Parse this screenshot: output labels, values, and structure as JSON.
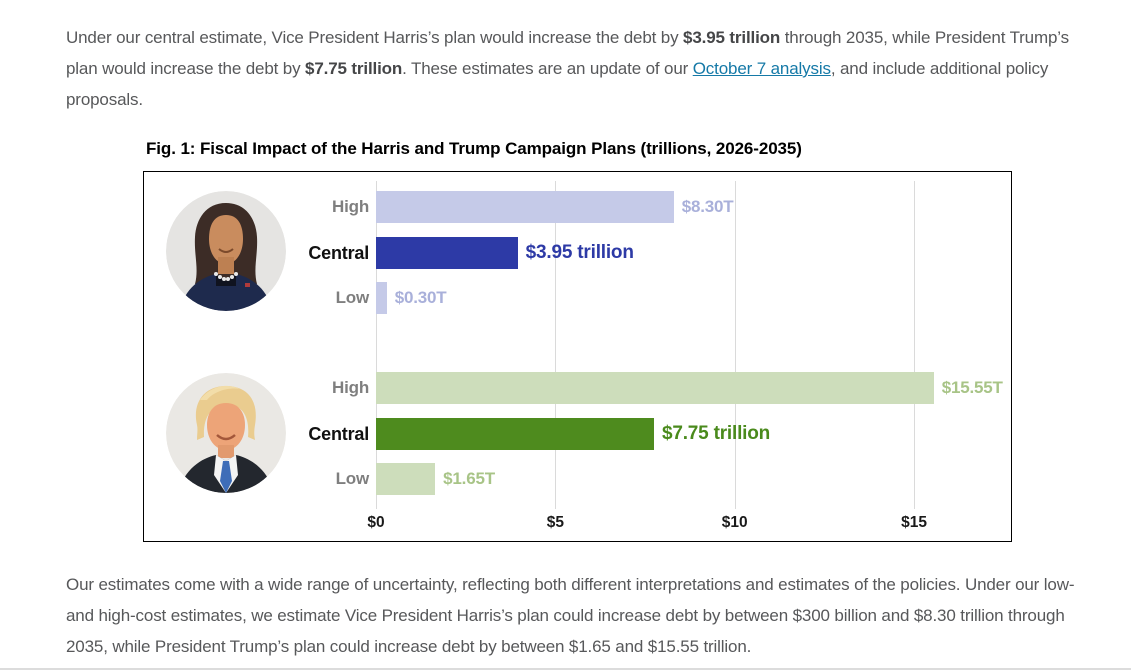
{
  "intro": {
    "segments": [
      {
        "t": "Under our central estimate, Vice President Harris’s plan would increase the debt by "
      },
      {
        "t": "$3.95 trillion",
        "b": true
      },
      {
        "t": " through 2035, while President Trump’s plan would increase the debt by "
      },
      {
        "t": "$7.75 trillion",
        "b": true
      },
      {
        "t": ". These estimates are an update of our "
      },
      {
        "t": "October 7 analysis",
        "link": true,
        "name": "october-7-analysis-link"
      },
      {
        "t": ", and include additional policy proposals."
      }
    ]
  },
  "outro": {
    "text": "Our estimates come with a wide range of uncertainty, reflecting both different interpretations and estimates of the policies. Under our low- and high-cost estimates, we estimate Vice President Harris’s plan could increase debt by between $300 billion and $8.30 trillion through 2035, while President Trump’s plan could increase debt by between $1.65 and $15.55 trillion."
  },
  "chart_data": {
    "type": "bar",
    "orientation": "horizontal",
    "title": "Fig. 1: Fiscal Impact of the Harris and Trump Campaign Plans (trillions, 2026-2035)",
    "unit": "trillions of dollars",
    "xlim": [
      0,
      17.7
    ],
    "grid": true,
    "x_ticks": [
      {
        "value": 0,
        "label": "$0"
      },
      {
        "value": 5,
        "label": "$5"
      },
      {
        "value": 10,
        "label": "$10"
      },
      {
        "value": 15,
        "label": "$15"
      }
    ],
    "groups": [
      {
        "name": "Harris",
        "photo_alt": "Kamala Harris portrait",
        "color_light": "#c5cae8",
        "color_dark": "#2d3aa6",
        "value_color_light": "#a9b0da",
        "value_color_dark": "#2d3aa6",
        "bars": [
          {
            "label": "High",
            "value": 8.3,
            "value_label": "$8.30T",
            "emphasis": false
          },
          {
            "label": "Central",
            "value": 3.95,
            "value_label": "$3.95 trillion",
            "emphasis": true
          },
          {
            "label": "Low",
            "value": 0.3,
            "value_label": "$0.30T",
            "emphasis": false
          }
        ]
      },
      {
        "name": "Trump",
        "photo_alt": "Donald Trump portrait",
        "color_light": "#cdddbb",
        "color_dark": "#4e8b1e",
        "value_color_light": "#a8c487",
        "value_color_dark": "#4a8a1c",
        "bars": [
          {
            "label": "High",
            "value": 15.55,
            "value_label": "$15.55T",
            "emphasis": false
          },
          {
            "label": "Central",
            "value": 7.75,
            "value_label": "$7.75 trillion",
            "emphasis": true
          },
          {
            "label": "Low",
            "value": 1.65,
            "value_label": "$1.65T",
            "emphasis": false
          }
        ]
      }
    ]
  },
  "theme": {
    "link_color": "#1579a7",
    "body_text": "#57585a",
    "bold_text": "#454648",
    "label_gray": "#7f7f7f",
    "axis_text": "#1a1a1a",
    "gridline": "#dadada",
    "divider": "#dcdcdc"
  }
}
